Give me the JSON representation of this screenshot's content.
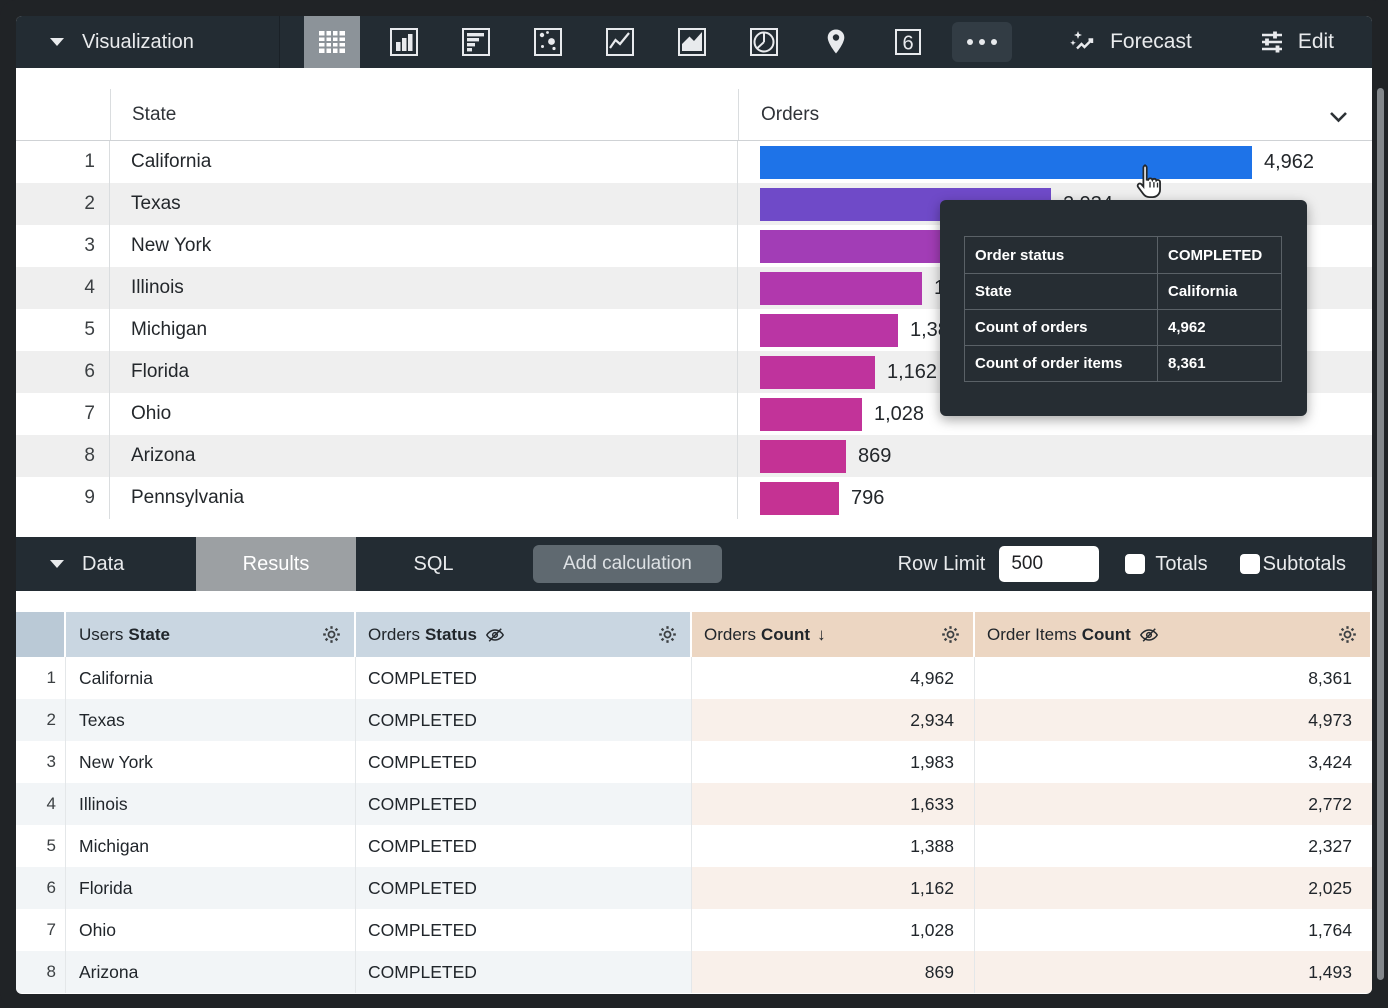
{
  "viz_toolbar": {
    "title": "Visualization",
    "icons": [
      {
        "name": "table-chart-icon",
        "selected": true
      },
      {
        "name": "column-chart-icon"
      },
      {
        "name": "bar-chart-icon"
      },
      {
        "name": "scatter-chart-icon"
      },
      {
        "name": "line-chart-icon"
      },
      {
        "name": "area-chart-icon"
      },
      {
        "name": "pie-chart-icon"
      },
      {
        "name": "map-chart-icon"
      },
      {
        "name": "single-value-icon"
      },
      {
        "name": "more-icon"
      }
    ],
    "forecast_label": "Forecast",
    "edit_label": "Edit"
  },
  "viz_table": {
    "state_header": "State",
    "orders_header": "Orders",
    "max_value": 4962,
    "rows": [
      {
        "n": "1",
        "state": "California",
        "value": 4962,
        "display": "4,962",
        "color": "#1e73e8"
      },
      {
        "n": "2",
        "state": "Texas",
        "value": 2934,
        "display": "2,934",
        "color": "#6f4ac8"
      },
      {
        "n": "3",
        "state": "New York",
        "value": 1983,
        "display": "1,983",
        "color": "#a23db6"
      },
      {
        "n": "4",
        "state": "Illinois",
        "value": 1633,
        "display": "1,633",
        "color": "#b138ad"
      },
      {
        "n": "5",
        "state": "Michigan",
        "value": 1388,
        "display": "1,388",
        "color": "#ba35a4"
      },
      {
        "n": "6",
        "state": "Florida",
        "value": 1162,
        "display": "1,162",
        "color": "#bf339d"
      },
      {
        "n": "7",
        "state": "Ohio",
        "value": 1028,
        "display": "1,028",
        "color": "#c23399"
      },
      {
        "n": "8",
        "state": "Arizona",
        "value": 869,
        "display": "869",
        "color": "#c43295"
      },
      {
        "n": "9",
        "state": "Pennsylvania",
        "value": 796,
        "display": "796",
        "color": "#c53293"
      }
    ]
  },
  "tooltip": {
    "rows": [
      {
        "label": "Order status",
        "value": "COMPLETED"
      },
      {
        "label": "State",
        "value": "California"
      },
      {
        "label": "Count of orders",
        "value": "4,962"
      },
      {
        "label": "Count of order items",
        "value": "8,361"
      }
    ]
  },
  "data_toolbar": {
    "title": "Data",
    "results_tab": "Results",
    "sql_tab": "SQL",
    "add_calculation_label": "Add calculation",
    "row_limit_label": "Row Limit",
    "row_limit_value": "500",
    "totals_label": "Totals",
    "subtotals_label": "Subtotals"
  },
  "results_table": {
    "columns": [
      {
        "prefix": "Users",
        "name": "State"
      },
      {
        "prefix": "Orders",
        "name": "Status",
        "hidden_icon": true
      },
      {
        "prefix": "Orders",
        "name": "Count",
        "sort": "desc"
      },
      {
        "prefix": "Order Items",
        "name": "Count",
        "hidden_icon": true
      }
    ],
    "sort_arrow": "↓",
    "rows": [
      {
        "n": "1",
        "state": "California",
        "status": "COMPLETED",
        "count": "4,962",
        "items": "8,361"
      },
      {
        "n": "2",
        "state": "Texas",
        "status": "COMPLETED",
        "count": "2,934",
        "items": "4,973"
      },
      {
        "n": "3",
        "state": "New York",
        "status": "COMPLETED",
        "count": "1,983",
        "items": "3,424"
      },
      {
        "n": "4",
        "state": "Illinois",
        "status": "COMPLETED",
        "count": "1,633",
        "items": "2,772"
      },
      {
        "n": "5",
        "state": "Michigan",
        "status": "COMPLETED",
        "count": "1,388",
        "items": "2,327"
      },
      {
        "n": "6",
        "state": "Florida",
        "status": "COMPLETED",
        "count": "1,162",
        "items": "2,025"
      },
      {
        "n": "7",
        "state": "Ohio",
        "status": "COMPLETED",
        "count": "1,028",
        "items": "1,764"
      },
      {
        "n": "8",
        "state": "Arizona",
        "status": "COMPLETED",
        "count": "869",
        "items": "1,493"
      }
    ]
  },
  "colors": {
    "accent_blue": "#1e73e8",
    "bar_magenta": "#c23399",
    "toolbar_bg": "#232c33",
    "dimension_header_bg": "#c9d6e1",
    "measure_header_bg": "#ecd6c2"
  }
}
